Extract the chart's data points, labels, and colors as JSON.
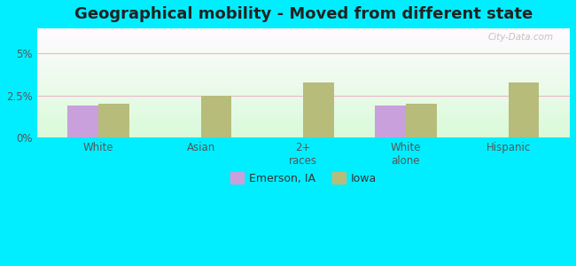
{
  "title": "Geographical mobility - Moved from different state",
  "categories": [
    "White",
    "Asian",
    "2+\nraces",
    "White\nalone",
    "Hispanic"
  ],
  "emerson_values": [
    1.9,
    0.0,
    0.0,
    1.9,
    0.0
  ],
  "iowa_values": [
    2.0,
    2.5,
    3.3,
    2.0,
    3.3
  ],
  "emerson_color": "#c9a0dc",
  "iowa_color": "#b8bc7a",
  "background_outer": "#00eeff",
  "ylim_max": 6.5,
  "ytick_vals": [
    0,
    2.5,
    5.0
  ],
  "ytick_labels": [
    "0%",
    "2.5%",
    "5%"
  ],
  "legend_emerson": "Emerson, IA",
  "legend_iowa": "Iowa",
  "bar_width": 0.3,
  "title_fontsize": 13,
  "tick_fontsize": 8.5,
  "legend_fontsize": 9,
  "grid_color": "#e8b8c8",
  "watermark": "City-Data.com"
}
